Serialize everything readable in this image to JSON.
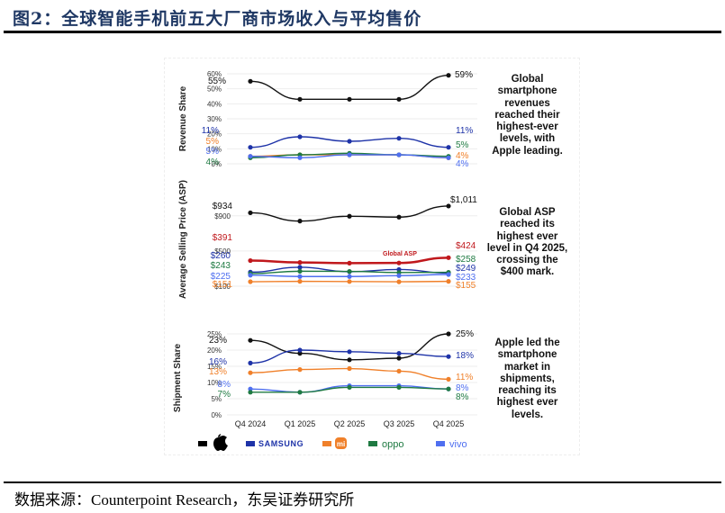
{
  "figure": {
    "title": "图2：全球智能手机前五大厂商市场收入与平均售价",
    "source": "数据来源：Counterpoint Research，东吴证券研究所"
  },
  "notes": {
    "revenue": "Global smartphone revenues reached their highest-ever levels, with Apple leading.",
    "asp": "Global ASP reached its highest ever level in Q4 2025, crossing the $400 mark.",
    "shipment": "Apple led the smartphone market in shipments, reaching its highest ever levels."
  },
  "legend": [
    {
      "name": "Apple",
      "icon": "apple-logo-icon",
      "color": "#000000"
    },
    {
      "name": "SAMSUNG",
      "icon": "samsung-logo",
      "color": "#1a2fa0"
    },
    {
      "name": "mi",
      "icon": "xiaomi-logo-icon",
      "color": "#f07a20"
    },
    {
      "name": "oppo",
      "icon": "oppo-logo",
      "color": "#1b7a3e"
    },
    {
      "name": "vivo",
      "icon": "vivo-logo",
      "color": "#4a63e8"
    }
  ],
  "colors": {
    "apple": "#111111",
    "samsung": "#1e33a8",
    "xiaomi": "#f0802a",
    "oppo": "#1f7a42",
    "vivo": "#4f6ff0",
    "global": "#c0181c"
  },
  "chart_data": [
    {
      "type": "line",
      "title": "Revenue Share",
      "ylabel": "Revenue Share",
      "categories": [
        "Q4 2024",
        "Q1 2025",
        "Q2 2025",
        "Q3 2025",
        "Q4 2025"
      ],
      "yticks": [
        "0%",
        "10%",
        "20%",
        "30%",
        "40%",
        "50%",
        "60%"
      ],
      "ylim": [
        0,
        60
      ],
      "series": [
        {
          "name": "Apple",
          "values": [
            55,
            43,
            43,
            43,
            59
          ],
          "start_label": "55%",
          "end_label": "59%"
        },
        {
          "name": "Samsung",
          "values": [
            11,
            18,
            15,
            17,
            11
          ],
          "start_label": "11%",
          "end_label": "11%"
        },
        {
          "name": "Xiaomi",
          "values": [
            5,
            6,
            6,
            6,
            4
          ],
          "start_label": "5%",
          "end_label": "4%"
        },
        {
          "name": "OPPO",
          "values": [
            4,
            6,
            7,
            6,
            5
          ],
          "start_label": "4%",
          "end_label": "5%"
        },
        {
          "name": "vivo",
          "values": [
            5,
            4,
            6,
            6,
            4
          ],
          "start_label": "5%",
          "end_label": "4%"
        }
      ]
    },
    {
      "type": "line",
      "title": "Average Selling Price (ASP)",
      "ylabel": "Average Selling Price (ASP)",
      "categories": [
        "Q4 2024",
        "Q1 2025",
        "Q2 2025",
        "Q3 2025",
        "Q4 2025"
      ],
      "yticks": [
        "$100",
        "$500",
        "$900"
      ],
      "annotation": "Global ASP",
      "series": [
        {
          "name": "Apple",
          "values": [
            934,
            840,
            895,
            885,
            1011
          ],
          "start_label": "$934",
          "end_label": "$1,011"
        },
        {
          "name": "Global ASP",
          "values": [
            391,
            370,
            362,
            364,
            424
          ],
          "start_label": "$391",
          "end_label": "$424"
        },
        {
          "name": "Samsung",
          "values": [
            260,
            315,
            265,
            290,
            249
          ],
          "start_label": "$260",
          "end_label": "$249"
        },
        {
          "name": "OPPO",
          "values": [
            243,
            270,
            268,
            255,
            258
          ],
          "start_label": "$243",
          "end_label": "$258"
        },
        {
          "name": "vivo",
          "values": [
            225,
            210,
            210,
            220,
            233
          ],
          "start_label": "$225",
          "end_label": "$233"
        },
        {
          "name": "Xiaomi",
          "values": [
            151,
            155,
            153,
            150,
            155
          ],
          "start_label": "$151",
          "end_label": "$155"
        }
      ]
    },
    {
      "type": "line",
      "title": "Shipment Share",
      "ylabel": "Shipment Share",
      "categories": [
        "Q4 2024",
        "Q1 2025",
        "Q2 2025",
        "Q3 2025",
        "Q4 2025"
      ],
      "yticks": [
        "0%",
        "5%",
        "10%",
        "15%",
        "20%",
        "25%"
      ],
      "ylim": [
        0,
        25
      ],
      "series": [
        {
          "name": "Apple",
          "values": [
            23,
            19,
            17,
            17.5,
            25
          ],
          "start_label": "23%",
          "end_label": "25%"
        },
        {
          "name": "Samsung",
          "values": [
            16,
            20,
            19.5,
            19,
            18
          ],
          "start_label": "16%",
          "end_label": "18%"
        },
        {
          "name": "Xiaomi",
          "values": [
            13,
            14,
            14.3,
            13.5,
            11
          ],
          "start_label": "13%",
          "end_label": "11%"
        },
        {
          "name": "vivo",
          "values": [
            8,
            7,
            9,
            9,
            8
          ],
          "start_label": "8%",
          "end_label": "8%"
        },
        {
          "name": "OPPO",
          "values": [
            7,
            7,
            8.5,
            8.5,
            8
          ],
          "start_label": "7%",
          "end_label": "8%"
        }
      ]
    }
  ]
}
